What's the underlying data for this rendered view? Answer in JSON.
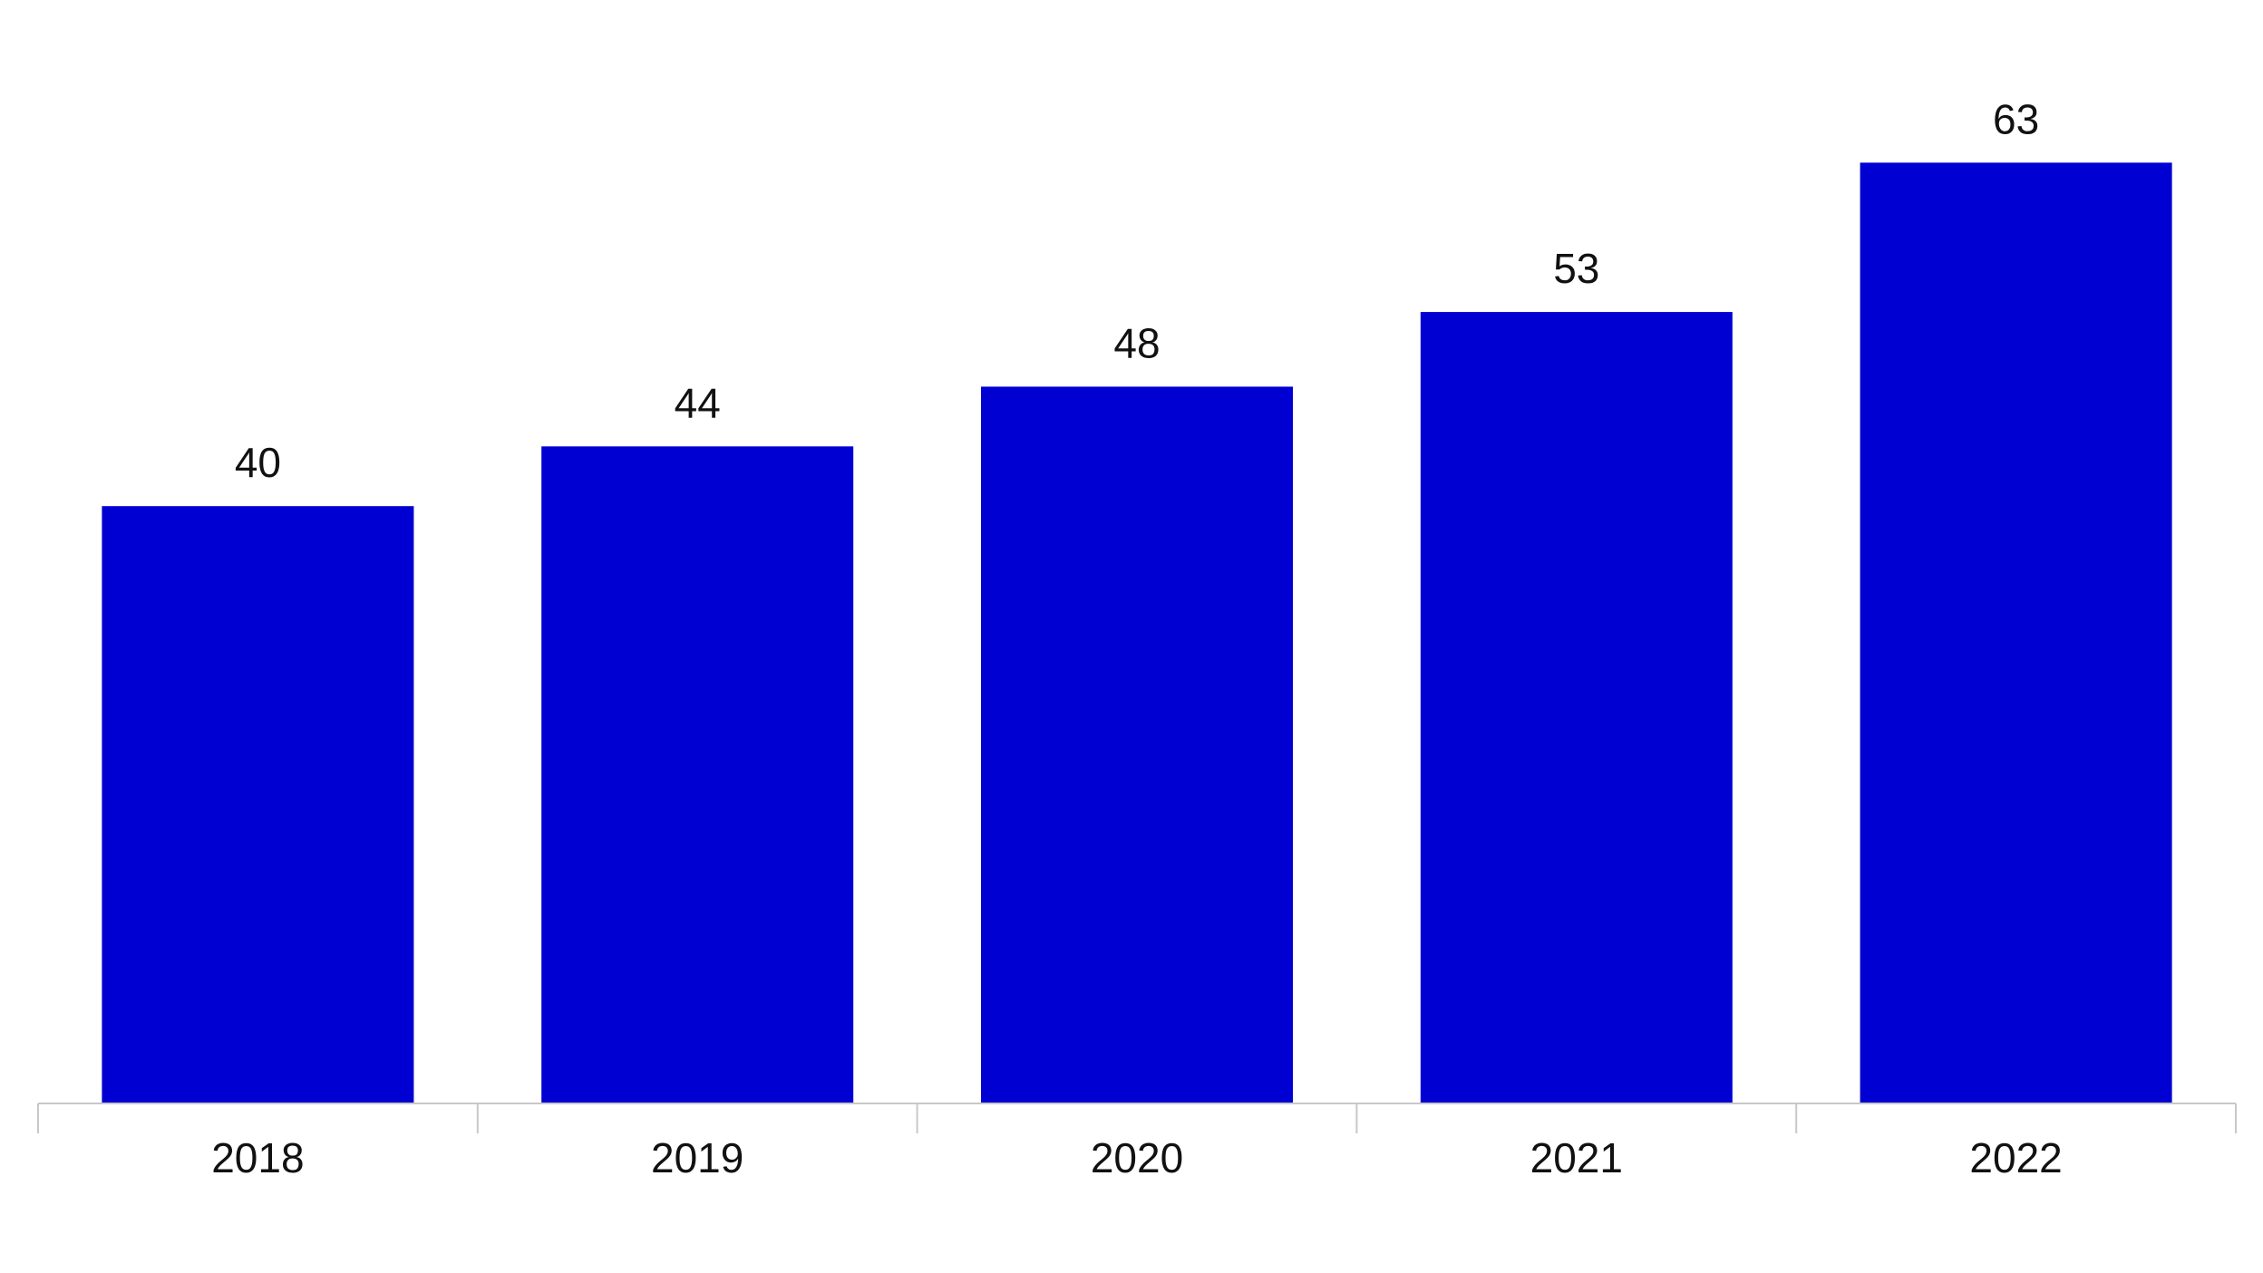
{
  "chart_data": {
    "type": "bar",
    "title": "",
    "xlabel": "",
    "ylabel": "",
    "categories": [
      "2018",
      "2019",
      "2020",
      "2021",
      "2022"
    ],
    "values": [
      40,
      44,
      48,
      53,
      63
    ],
    "data_labels": [
      "40",
      "44",
      "48",
      "53",
      "63"
    ],
    "ylim": [
      0,
      66
    ],
    "grid": false,
    "legend": "none",
    "bar_color": "#0000d2",
    "axis_color": "#c8c8c8",
    "text_color": "#111111"
  }
}
